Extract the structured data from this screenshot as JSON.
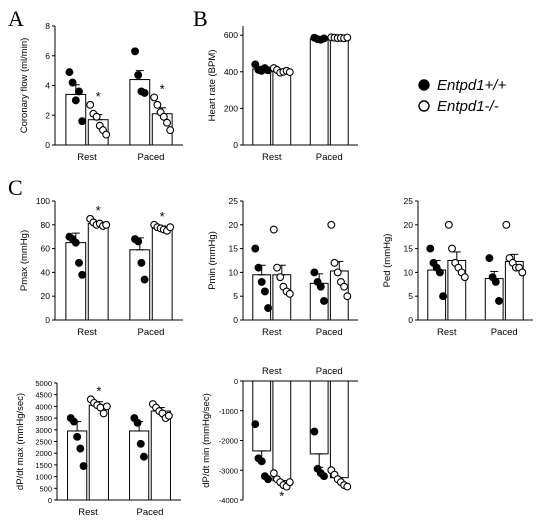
{
  "panel_letters": [
    "A",
    "B",
    "C"
  ],
  "legend": [
    {
      "label": "Entpd1+/+",
      "marker": "filled-circle"
    },
    {
      "label": "Entpd1-/-",
      "marker": "open-circle"
    }
  ],
  "chart_data": [
    {
      "id": "coronary",
      "type": "bar",
      "panel": "A",
      "ylabel": "Coronary flow (ml/min)",
      "ylim": [
        0,
        8
      ],
      "yticks": [
        0,
        2,
        4,
        6,
        8
      ],
      "ytick_labels": [
        "0",
        "2",
        "4",
        "6",
        "8"
      ],
      "categories": [
        "Rest",
        "Paced"
      ],
      "significance_marker": "*",
      "series": [
        {
          "name": "Entpd1+/+",
          "values": [
            3.4,
            4.4
          ],
          "sem": [
            0.65,
            0.6
          ],
          "points": [
            [
              4.9,
              4.2,
              3.0,
              3.6,
              1.6
            ],
            [
              6.3,
              4.7,
              3.6,
              3.5
            ]
          ],
          "sig": [
            false,
            false
          ]
        },
        {
          "name": "Entpd1-/-",
          "values": [
            1.7,
            2.1
          ],
          "sem": [
            0.35,
            0.4
          ],
          "points": [
            [
              2.7,
              2.1,
              1.9,
              1.3,
              1.0,
              0.7
            ],
            [
              3.2,
              2.7,
              2.2,
              1.9,
              1.5,
              1.0
            ]
          ],
          "sig": [
            true,
            true
          ]
        }
      ]
    },
    {
      "id": "heartrate",
      "type": "bar",
      "panel": "B",
      "ylabel": "Heart rate (BPM)",
      "ylim": [
        0,
        650
      ],
      "yticks": [
        0,
        200,
        400,
        600
      ],
      "ytick_labels": [
        "0",
        "200",
        "400",
        "600"
      ],
      "categories": [
        "Rest",
        "Paced"
      ],
      "significance_marker": "*",
      "series": [
        {
          "name": "Entpd1+/+",
          "values": [
            415,
            580
          ],
          "sem": [
            15,
            5
          ],
          "points": [
            [
              440,
              410,
              405,
              420,
              408
            ],
            [
              586,
              578,
              575,
              582
            ]
          ],
          "sig": [
            false,
            false
          ]
        },
        {
          "name": "Entpd1-/-",
          "values": [
            405,
            585
          ],
          "sem": [
            10,
            3
          ],
          "points": [
            [
              420,
              410,
              395,
              400,
              405,
              398
            ],
            [
              588,
              586,
              584,
              585,
              583,
              587
            ]
          ],
          "sig": [
            false,
            false
          ]
        }
      ]
    },
    {
      "id": "pmax",
      "type": "bar",
      "panel": "C",
      "ylabel": "Pmax (mmHg)",
      "ylim": [
        0,
        100
      ],
      "yticks": [
        0,
        20,
        40,
        60,
        80,
        100
      ],
      "ytick_labels": [
        "0",
        "20",
        "40",
        "60",
        "80",
        "100"
      ],
      "categories": [
        "Rest",
        "Paced"
      ],
      "significance_marker": "*",
      "series": [
        {
          "name": "Entpd1+/+",
          "values": [
            65,
            59
          ],
          "sem": [
            8,
            10
          ],
          "points": [
            [
              70,
              68,
              65,
              48,
              38
            ],
            [
              68,
              66,
              48,
              34
            ]
          ],
          "sig": [
            false,
            false
          ]
        },
        {
          "name": "Entpd1-/-",
          "values": [
            81,
            77
          ],
          "sem": [
            2,
            2
          ],
          "points": [
            [
              85,
              82,
              80,
              81,
              79,
              80
            ],
            [
              80,
              78,
              77,
              76,
              75,
              78
            ]
          ],
          "sig": [
            true,
            true
          ]
        }
      ]
    },
    {
      "id": "pmin",
      "type": "bar",
      "panel": "C",
      "ylabel": "Pmin (mmHg)",
      "ylim": [
        0,
        25
      ],
      "yticks": [
        0,
        5,
        10,
        15,
        20,
        25
      ],
      "ytick_labels": [
        "0",
        "5",
        "10",
        "15",
        "20",
        "25"
      ],
      "categories": [
        "Rest",
        "Paced"
      ],
      "significance_marker": "*",
      "series": [
        {
          "name": "Entpd1+/+",
          "values": [
            9.5,
            7.7
          ],
          "sem": [
            2.0,
            2.0
          ],
          "points": [
            [
              15,
              11,
              8,
              6,
              2.5
            ],
            [
              10,
              8,
              7,
              4
            ]
          ],
          "sig": [
            false,
            false
          ]
        },
        {
          "name": "Entpd1-/-",
          "values": [
            9.5,
            10.3
          ],
          "sem": [
            2.0,
            2.0
          ],
          "points": [
            [
              19,
              11,
              9,
              7,
              6,
              5.5
            ],
            [
              20,
              12,
              10,
              8,
              7,
              5
            ]
          ],
          "sig": [
            false,
            false
          ]
        }
      ]
    },
    {
      "id": "ped",
      "type": "bar",
      "panel": "C",
      "ylabel": "Ped (mmHg)",
      "ylim": [
        0,
        25
      ],
      "yticks": [
        0,
        5,
        10,
        15,
        20,
        25
      ],
      "ytick_labels": [
        "0",
        "5",
        "10",
        "15",
        "20",
        "25"
      ],
      "categories": [
        "Rest",
        "Paced"
      ],
      "significance_marker": "*",
      "series": [
        {
          "name": "Entpd1+/+",
          "values": [
            10.5,
            8.7
          ],
          "sem": [
            2.0,
            1.5
          ],
          "points": [
            [
              15,
              12,
              11,
              10,
              5
            ],
            [
              13,
              9,
              8,
              4
            ]
          ],
          "sig": [
            false,
            false
          ]
        },
        {
          "name": "Entpd1-/-",
          "values": [
            12.5,
            12.3
          ],
          "sem": [
            1.8,
            1.5
          ],
          "points": [
            [
              20,
              15,
              12,
              11,
              10,
              9
            ],
            [
              20,
              13,
              12,
              11,
              11,
              10
            ]
          ],
          "sig": [
            false,
            false
          ]
        }
      ]
    },
    {
      "id": "dpdtmax",
      "type": "bar",
      "panel": "C",
      "ylabel": "dP/dt max (mmHg/sec)",
      "ylim": [
        0,
        5000
      ],
      "yticks": [
        0,
        500,
        1000,
        1500,
        2000,
        2500,
        3000,
        3500,
        4000,
        4500,
        5000
      ],
      "ytick_labels": [
        "0",
        "500",
        "1000",
        "1500",
        "2000",
        "2500",
        "3000",
        "3500",
        "4000",
        "4500",
        "5000"
      ],
      "categories": [
        "Rest",
        "Paced"
      ],
      "significance_marker": "*",
      "series": [
        {
          "name": "Entpd1+/+",
          "values": [
            2950,
            2950
          ],
          "sem": [
            400,
            400
          ],
          "points": [
            [
              3500,
              3350,
              2700,
              2200,
              1450
            ],
            [
              3500,
              3300,
              2400,
              1850
            ]
          ],
          "sig": [
            false,
            false
          ]
        },
        {
          "name": "Entpd1-/-",
          "values": [
            4050,
            3800
          ],
          "sem": [
            150,
            150
          ],
          "points": [
            [
              4300,
              4150,
              4050,
              3950,
              3700,
              4000
            ],
            [
              4100,
              3950,
              3800,
              3700,
              3500,
              3600
            ]
          ],
          "sig": [
            true,
            false
          ]
        }
      ]
    },
    {
      "id": "dpdtmin",
      "type": "bar",
      "panel": "C",
      "ylabel": "dP/dt min (mmHg/sec)",
      "ylim": [
        -4000,
        0
      ],
      "yticks": [
        -4000,
        -3000,
        -2000,
        -1000,
        0
      ],
      "ytick_labels": [
        "-4000",
        "-3000",
        "-2000",
        "-1000",
        "0"
      ],
      "categories": [
        "Rest",
        "Paced"
      ],
      "category_labels_position": "top",
      "significance_marker": "*",
      "series": [
        {
          "name": "Entpd1+/+",
          "values": [
            -2350,
            -2450
          ],
          "sem": [
            350,
            450
          ],
          "points": [
            [
              -1450,
              -2600,
              -2700,
              -3200,
              -3300
            ],
            [
              -1700,
              -2950,
              -3100,
              -3200
            ]
          ],
          "sig": [
            false,
            false
          ]
        },
        {
          "name": "Entpd1-/-",
          "values": [
            -3350,
            -3250
          ],
          "sem": [
            100,
            100
          ],
          "points": [
            [
              -3100,
              -3300,
              -3400,
              -3500,
              -3550,
              -3400
            ],
            [
              -3000,
              -3150,
              -3300,
              -3400,
              -3500,
              -3550
            ]
          ],
          "sig": [
            true,
            false
          ]
        }
      ]
    }
  ]
}
